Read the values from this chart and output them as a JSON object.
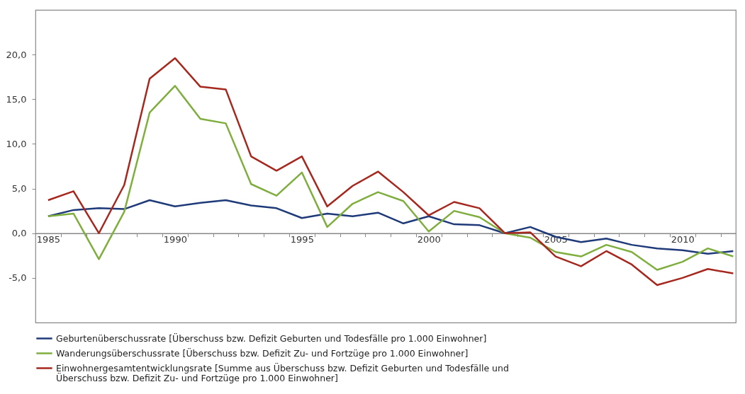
{
  "chart_data": {
    "type": "line",
    "x": [
      1985,
      1986,
      1987,
      1988,
      1989,
      1990,
      1991,
      1992,
      1993,
      1994,
      1995,
      1996,
      1997,
      1998,
      1999,
      2000,
      2001,
      2002,
      2003,
      2004,
      2005,
      2006,
      2007,
      2008,
      2009,
      2010,
      2011,
      2012
    ],
    "series": [
      {
        "name": "Geburtenüberschussrate [Überschuss bzw. Defizit Geburten und Todesfälle pro 1.000 Einwohner]",
        "color": "#1f3a78",
        "values": [
          1.9,
          2.6,
          2.8,
          2.7,
          3.7,
          3.0,
          3.4,
          3.7,
          3.1,
          2.8,
          1.7,
          2.2,
          1.9,
          2.3,
          1.1,
          1.9,
          1.0,
          0.9,
          0.0,
          0.7,
          -0.4,
          -1.0,
          -0.6,
          -1.3,
          -1.7,
          -1.9,
          -2.3,
          -2.0
        ]
      },
      {
        "name": "Wanderungsüberschussrate [Überschuss bzw. Defizit Zu- und Fortzüge pro 1.000 Einwohner]",
        "color": "#7fae3e",
        "values": [
          1.9,
          2.2,
          -2.9,
          2.4,
          13.5,
          16.5,
          12.8,
          12.3,
          5.5,
          4.2,
          6.8,
          0.7,
          3.3,
          4.6,
          3.6,
          0.2,
          2.5,
          1.8,
          0.0,
          -0.5,
          -2.1,
          -2.6,
          -1.3,
          -2.1,
          -4.1,
          -3.2,
          -1.7,
          -2.6
        ]
      },
      {
        "name": "Einwohnergesamtentwicklungsrate [Summe aus Überschuss bzw. Defizit Geburten und Todesfälle und Überschuss bzw. Defizit Zu- und Fortzüge pro 1.000 Einwohner]",
        "color": "#a5281f",
        "values": [
          3.7,
          4.7,
          0.0,
          5.4,
          17.3,
          19.6,
          16.4,
          16.1,
          8.6,
          7.0,
          8.6,
          3.0,
          5.3,
          6.9,
          4.6,
          2.0,
          3.5,
          2.8,
          0.0,
          0.1,
          -2.6,
          -3.7,
          -2.0,
          -3.5,
          -5.8,
          -5.0,
          -4.0,
          -4.5
        ]
      }
    ],
    "xlim": [
      1984.5,
      2012.1
    ],
    "xticks": [
      1985,
      {
        "value": 1985.5,
        "label": null
      },
      {
        "value": 1986.5,
        "label": null
      },
      {
        "value": 1987.5,
        "label": null
      },
      {
        "value": 1988.5,
        "label": null
      },
      {
        "value": 1989.5,
        "label": null
      },
      1990,
      {
        "value": 1990.5,
        "label": null
      },
      {
        "value": 1991.5,
        "label": null
      },
      {
        "value": 1992.5,
        "label": null
      },
      {
        "value": 1993.5,
        "label": null
      },
      {
        "value": 1994.5,
        "label": null
      },
      1995,
      {
        "value": 1995.5,
        "label": null
      },
      {
        "value": 1996.5,
        "label": null
      },
      {
        "value": 1997.5,
        "label": null
      },
      {
        "value": 1998.5,
        "label": null
      },
      {
        "value": 1999.5,
        "label": null
      },
      2000,
      {
        "value": 2000.5,
        "label": null
      },
      {
        "value": 2001.5,
        "label": null
      },
      {
        "value": 2002.5,
        "label": null
      },
      {
        "value": 2003.5,
        "label": null
      },
      {
        "value": 2004.5,
        "label": null
      },
      2005,
      {
        "value": 2005.5,
        "label": null
      },
      {
        "value": 2006.5,
        "label": null
      },
      {
        "value": 2007.5,
        "label": null
      },
      {
        "value": 2008.5,
        "label": null
      },
      {
        "value": 2009.5,
        "label": null
      },
      2010,
      {
        "value": 2010.5,
        "label": null
      },
      {
        "value": 2011.5,
        "label": null
      }
    ],
    "ylim": [
      -10,
      25
    ],
    "yticks": [
      {
        "value": -5,
        "label": "-5,0"
      },
      {
        "value": 0,
        "label": "0,0"
      },
      {
        "value": 5,
        "label": "5,0"
      },
      {
        "value": 10,
        "label": "10,0"
      },
      {
        "value": 15,
        "label": "15,0"
      },
      {
        "value": 20,
        "label": "20,0"
      }
    ],
    "grid": false,
    "legend": "bottom",
    "marker": "none",
    "line_style": "solid"
  }
}
